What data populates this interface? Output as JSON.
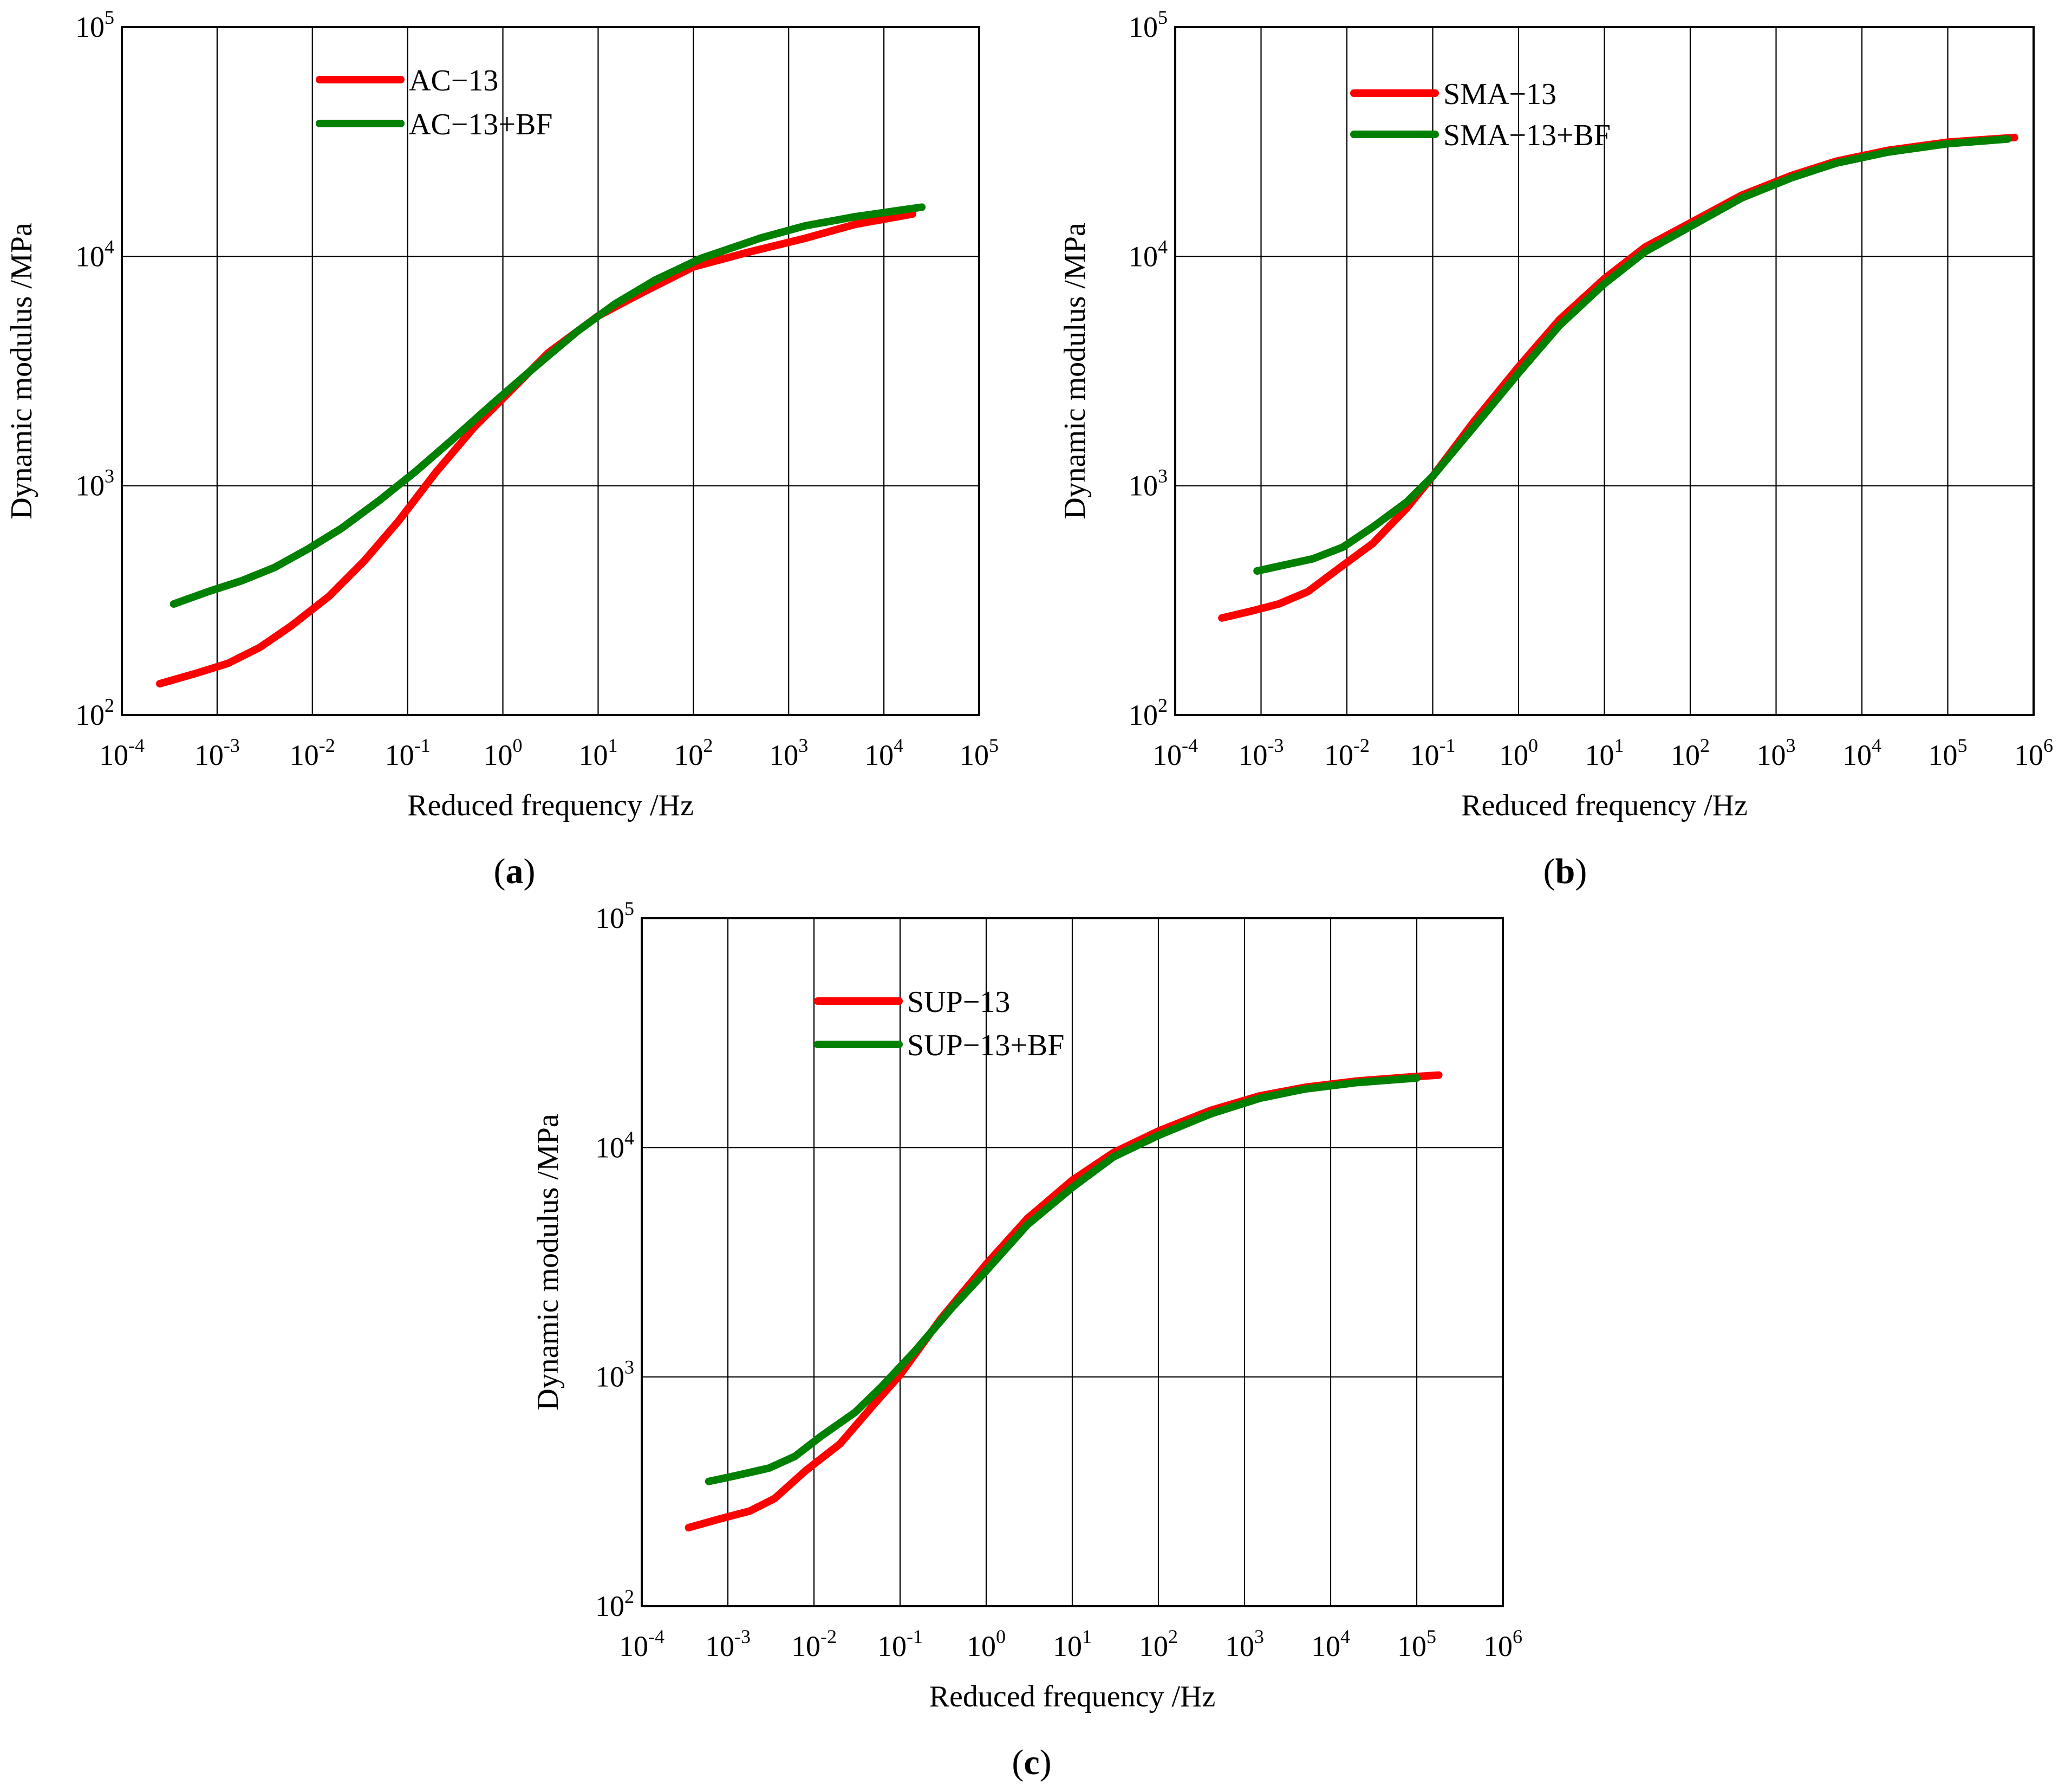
{
  "chart_data": [
    {
      "id": "a",
      "type": "line",
      "caption_letter": "a",
      "xlabel": "Reduced frequency /Hz",
      "ylabel": "Dynamic modulus /MPa",
      "x_scale": "log",
      "y_scale": "log",
      "xlim": [
        0.0001,
        100000
      ],
      "ylim": [
        100,
        100000
      ],
      "x_tick_exponents": [
        "-4",
        "-3",
        "-2",
        "-1",
        "0",
        "1",
        "2",
        "3",
        "4",
        "5"
      ],
      "y_tick_exponents": [
        "2",
        "3",
        "4",
        "5"
      ],
      "tick_base": "10",
      "grid": true,
      "legend_position": "top-left",
      "series": [
        {
          "name": "AC−13",
          "color": "#ff0000",
          "x": [
            0.00025,
            0.0006,
            0.0013,
            0.0028,
            0.006,
            0.015,
            0.035,
            0.08,
            0.2,
            0.5,
            1.0,
            3.0,
            10,
            30,
            100,
            400,
            1500,
            5000,
            20000
          ],
          "y": [
            137,
            152,
            168,
            197,
            245,
            330,
            470,
            700,
            1150,
            1800,
            2400,
            3800,
            5500,
            7000,
            9000,
            10500,
            12000,
            13800,
            15300
          ]
        },
        {
          "name": "AC−13+BF",
          "color": "#008000",
          "x": [
            0.00035,
            0.0008,
            0.0018,
            0.004,
            0.009,
            0.02,
            0.05,
            0.12,
            0.3,
            0.8,
            2.0,
            6.0,
            15,
            40,
            120,
            500,
            1500,
            5000,
            25000
          ],
          "y": [
            305,
            345,
            385,
            440,
            530,
            650,
            860,
            1150,
            1600,
            2300,
            3200,
            4700,
            6200,
            7900,
            9800,
            12000,
            13600,
            14900,
            16400
          ]
        }
      ]
    },
    {
      "id": "b",
      "type": "line",
      "caption_letter": "b",
      "xlabel": "Reduced frequency /Hz",
      "ylabel": "Dynamic modulus /MPa",
      "x_scale": "log",
      "y_scale": "log",
      "xlim": [
        0.0001,
        1000000
      ],
      "ylim": [
        100,
        100000
      ],
      "x_tick_exponents": [
        "-4",
        "-3",
        "-2",
        "-1",
        "0",
        "1",
        "2",
        "3",
        "4",
        "5",
        "6"
      ],
      "y_tick_exponents": [
        "2",
        "3",
        "4",
        "5"
      ],
      "tick_base": "10",
      "grid": true,
      "legend_position": "top-left",
      "series": [
        {
          "name": "SMA−13",
          "color": "#ff0000",
          "x": [
            0.00035,
            0.0008,
            0.0016,
            0.0035,
            0.008,
            0.02,
            0.05,
            0.1,
            0.3,
            1.0,
            3.0,
            10,
            30,
            100,
            400,
            1500,
            5000,
            20000,
            100000,
            600000
          ],
          "y": [
            265,
            285,
            305,
            345,
            435,
            560,
            800,
            1100,
            1900,
            3300,
            5300,
            8000,
            11000,
            14000,
            18500,
            22500,
            26000,
            29000,
            31500,
            33000
          ]
        },
        {
          "name": "SMA−13+BF",
          "color": "#008000",
          "x": [
            0.0009,
            0.0018,
            0.004,
            0.009,
            0.02,
            0.05,
            0.1,
            0.3,
            1.0,
            3.0,
            10,
            30,
            100,
            400,
            1500,
            5000,
            20000,
            100000,
            500000
          ],
          "y": [
            425,
            450,
            480,
            540,
            660,
            850,
            1100,
            1800,
            3100,
            5000,
            7600,
            10500,
            13500,
            18000,
            22000,
            25500,
            28500,
            31000,
            32500
          ]
        }
      ]
    },
    {
      "id": "c",
      "type": "line",
      "caption_letter": "c",
      "xlabel": "Reduced frequency /Hz",
      "ylabel": "Dynamic modulus /MPa",
      "x_scale": "log",
      "y_scale": "log",
      "xlim": [
        0.0001,
        1000000
      ],
      "ylim": [
        100,
        100000
      ],
      "x_tick_exponents": [
        "-4",
        "-3",
        "-2",
        "-1",
        "0",
        "1",
        "2",
        "3",
        "4",
        "5",
        "6"
      ],
      "y_tick_exponents": [
        "2",
        "3",
        "4",
        "5"
      ],
      "tick_base": "10",
      "grid": true,
      "legend_position": "top-left",
      "series": [
        {
          "name": "SUP−13",
          "color": "#ff0000",
          "x": [
            0.00035,
            0.0008,
            0.0018,
            0.0035,
            0.008,
            0.02,
            0.05,
            0.1,
            0.3,
            1.0,
            3.0,
            10,
            30,
            100,
            400,
            1500,
            5000,
            20000,
            80000,
            180000
          ],
          "y": [
            220,
            240,
            260,
            295,
            390,
            510,
            760,
            1020,
            1800,
            3100,
            4900,
            7200,
            9500,
            11800,
            14500,
            16800,
            18300,
            19500,
            20300,
            20700
          ]
        },
        {
          "name": "SUP−13+BF",
          "color": "#008000",
          "x": [
            0.0006,
            0.0012,
            0.003,
            0.006,
            0.012,
            0.03,
            0.06,
            0.15,
            0.4,
            1.0,
            3.0,
            10,
            30,
            100,
            400,
            1500,
            5000,
            20000,
            100000
          ],
          "y": [
            350,
            370,
            400,
            450,
            550,
            700,
            900,
            1300,
            2000,
            2900,
            4600,
            6700,
            9100,
            11300,
            14000,
            16400,
            18000,
            19200,
            20100
          ]
        }
      ]
    }
  ]
}
